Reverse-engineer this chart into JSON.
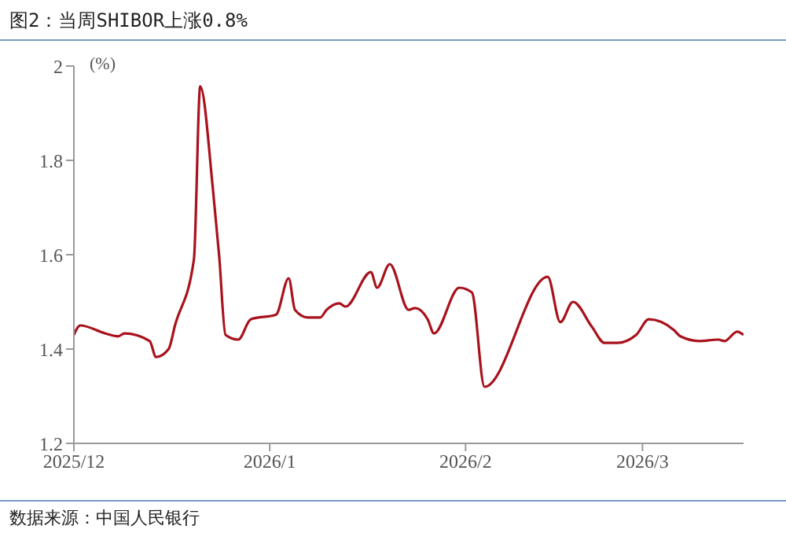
{
  "chart_data": {
    "type": "line",
    "title": "图2：当周SHIBOR上涨0.8%",
    "ylabel": "(%)",
    "annotations": [
      "数据来源：中国人民银行"
    ],
    "x": [
      "2025-12-01",
      "2025-12-02",
      "2025-12-06",
      "2025-12-08",
      "2025-12-09",
      "2025-12-13",
      "2025-12-14",
      "2025-12-16",
      "2025-12-17",
      "2025-12-20",
      "2025-12-21",
      "2025-12-23",
      "2025-12-24",
      "2025-12-25",
      "2025-12-27",
      "2025-12-29",
      "2026-01-02",
      "2026-01-04",
      "2026-01-05",
      "2026-01-07",
      "2026-01-09",
      "2026-01-10",
      "2026-01-12",
      "2026-01-13",
      "2026-01-17",
      "2026-01-18",
      "2026-01-20",
      "2026-01-23",
      "2026-01-24",
      "2026-01-26",
      "2026-01-27",
      "2026-01-31",
      "2026-02-02",
      "2026-02-04",
      "2026-02-14",
      "2026-02-16",
      "2026-02-18",
      "2026-02-21",
      "2026-02-23",
      "2026-02-25",
      "2026-02-28",
      "2026-03-02",
      "2026-03-06",
      "2026-03-07",
      "2026-03-10",
      "2026-03-13",
      "2026-03-14",
      "2026-03-16",
      "2026-03-17"
    ],
    "series": [
      {
        "color": "#a8121c",
        "values": [
          1.43,
          1.45,
          1.433,
          1.427,
          1.433,
          1.417,
          1.383,
          1.4,
          1.45,
          1.59,
          1.957,
          1.74,
          1.597,
          1.43,
          1.42,
          1.463,
          1.473,
          1.55,
          1.483,
          1.467,
          1.467,
          1.483,
          1.497,
          1.49,
          1.563,
          1.53,
          1.58,
          1.483,
          1.487,
          1.463,
          1.433,
          1.53,
          1.52,
          1.32,
          1.553,
          1.457,
          1.5,
          1.447,
          1.413,
          1.413,
          1.43,
          1.463,
          1.44,
          1.427,
          1.417,
          1.42,
          1.417,
          1.437,
          1.43
        ]
      }
    ],
    "xlim": [
      "2025-12-01",
      "2026-03-17"
    ],
    "xticks": [
      {
        "value": "2025-12-01",
        "label": "2025/12"
      },
      {
        "value": "2026-01-01",
        "label": "2026/1"
      },
      {
        "value": "2026-02-01",
        "label": "2026/2"
      },
      {
        "value": "2026-03-01",
        "label": "2026/3"
      }
    ],
    "ylim": [
      1.2,
      2
    ],
    "yticks": [
      1.2,
      1.4,
      1.6,
      1.8,
      2
    ],
    "grid": false,
    "legend": false,
    "marker": "none",
    "line_style": "solid"
  }
}
